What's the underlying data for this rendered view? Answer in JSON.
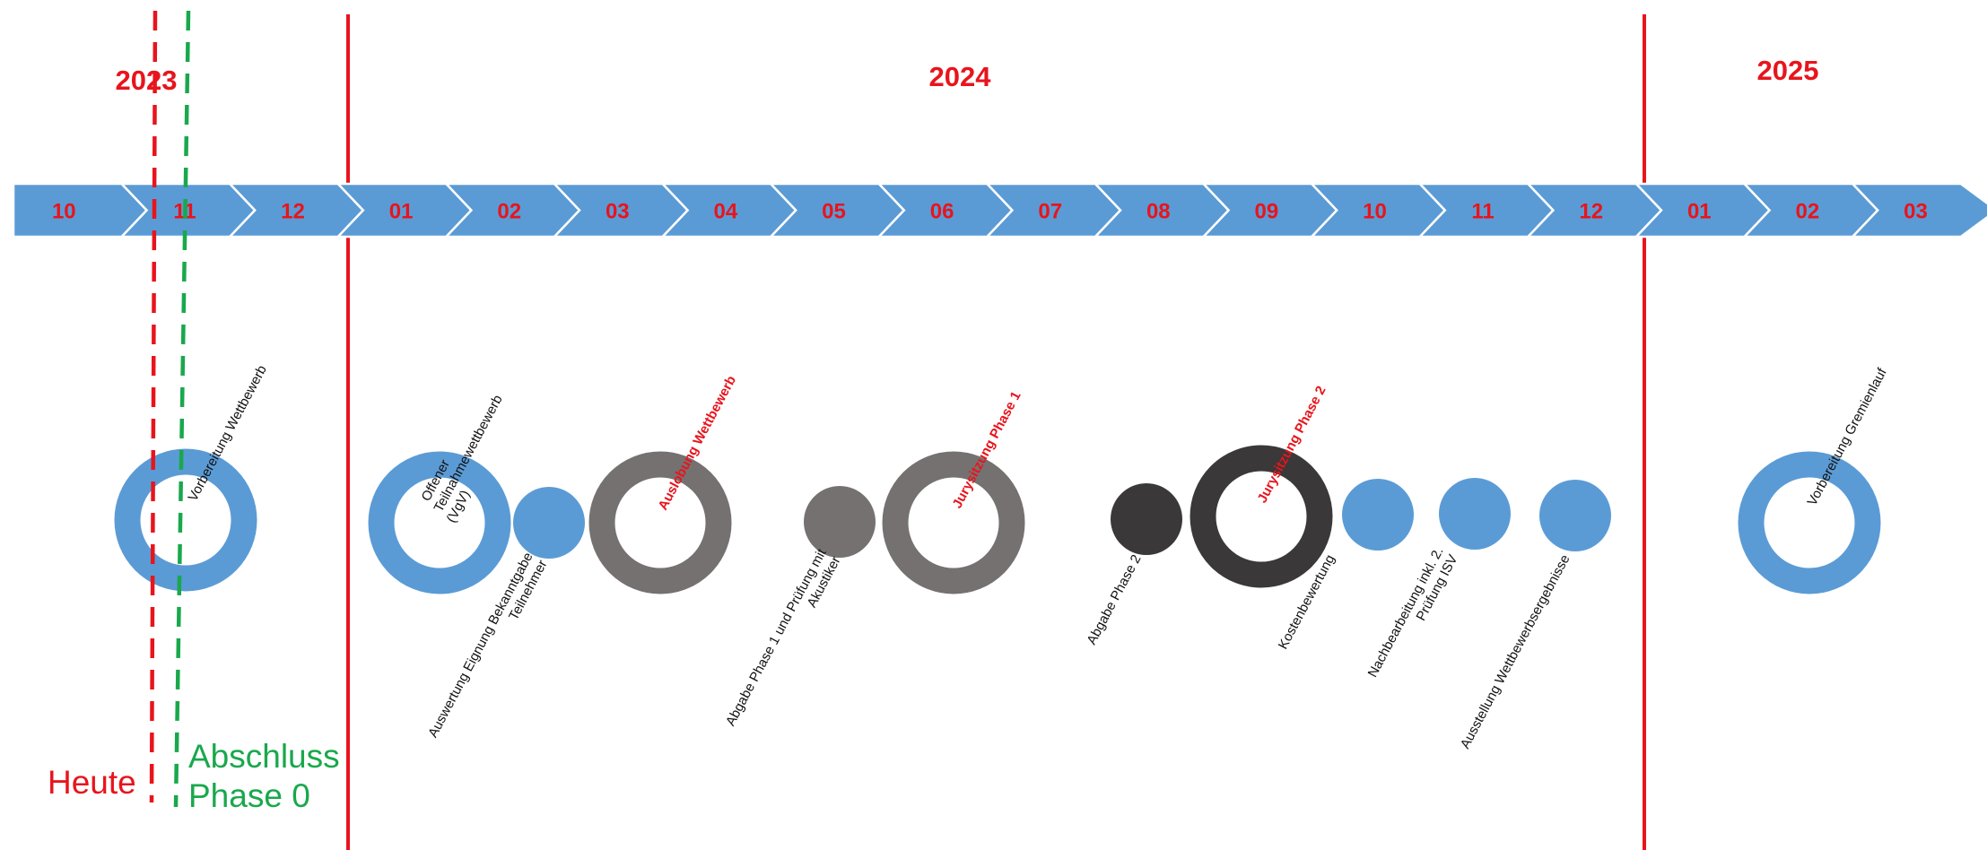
{
  "colors": {
    "arrow_blue": "#5b9bd5",
    "gray": "#767171",
    "dark": "#3a3838",
    "red": "#e8141c",
    "green": "#19a84c"
  },
  "years": [
    "2023",
    "2024",
    "2025"
  ],
  "months": [
    "10",
    "11",
    "12",
    "01",
    "02",
    "03",
    "04",
    "05",
    "06",
    "07",
    "08",
    "09",
    "10",
    "11",
    "12",
    "01",
    "02",
    "03"
  ],
  "milestones": [
    {
      "type": "ring",
      "color": "blue",
      "label_lines": [
        "Vorbereitung Wettbewerb"
      ],
      "label_position": "above",
      "highlight": false
    },
    {
      "type": "ring",
      "color": "blue",
      "label_lines": [
        "Offener",
        "Teilnahmewettbewerb",
        "(VgV)"
      ],
      "label_position": "above",
      "highlight": false
    },
    {
      "type": "dot",
      "color": "blue",
      "label_lines": [
        "Auswertung Eignung Bekanntgabe",
        "Teilnehmer"
      ],
      "label_position": "below",
      "highlight": false
    },
    {
      "type": "ring",
      "color": "gray",
      "label_lines": [
        "Auslobung Wettbewerb"
      ],
      "label_position": "above",
      "highlight": true
    },
    {
      "type": "dot",
      "color": "gray",
      "label_lines": [
        "Abgabe Phase 1 und Prüfung mit",
        "Akustiker"
      ],
      "label_position": "below",
      "highlight": false
    },
    {
      "type": "ring",
      "color": "gray",
      "label_lines": [
        "Jurysitzung Phase 1"
      ],
      "label_position": "above",
      "highlight": true
    },
    {
      "type": "dot",
      "color": "dark",
      "label_lines": [
        "Abgabe Phase 2"
      ],
      "label_position": "below",
      "highlight": false
    },
    {
      "type": "ring",
      "color": "dark",
      "label_lines": [
        "Jurysitzung Phase 2"
      ],
      "label_position": "above",
      "highlight": true
    },
    {
      "type": "dot",
      "color": "blue",
      "label_lines": [
        "Kostenbewertung"
      ],
      "label_position": "below",
      "highlight": false
    },
    {
      "type": "dot",
      "color": "blue",
      "label_lines": [
        "Nachbearbeitung inkl. 2.",
        "Prüfung ISV"
      ],
      "label_position": "below",
      "highlight": false
    },
    {
      "type": "dot",
      "color": "blue",
      "label_lines": [
        "Ausstellung Wettbewerbsergebnisse"
      ],
      "label_position": "below",
      "highlight": false
    },
    {
      "type": "ring",
      "color": "blue",
      "label_lines": [
        "Vorbereitung Gremienlauf"
      ],
      "label_position": "above",
      "highlight": false
    }
  ],
  "markers": {
    "today": "Heute",
    "phase0": [
      "Abschluss",
      "Phase 0"
    ]
  }
}
